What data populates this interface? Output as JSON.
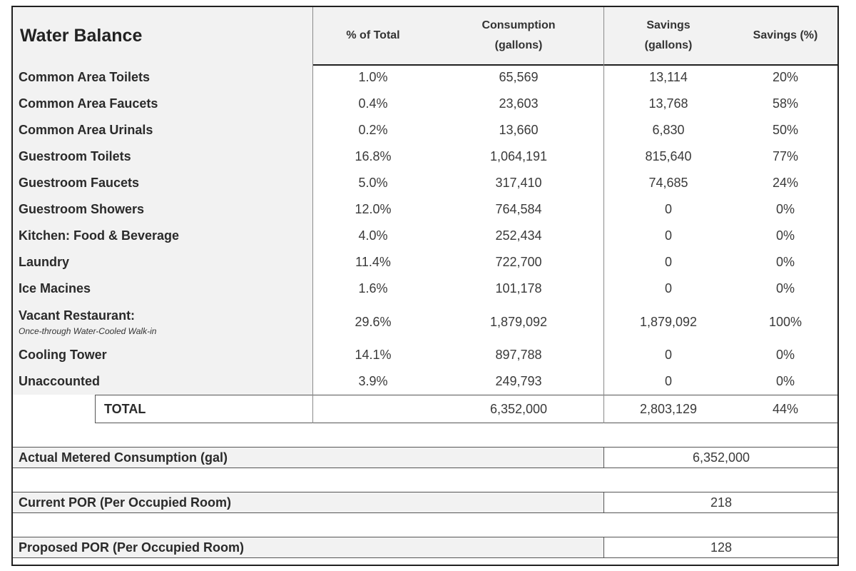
{
  "table": {
    "title": "Water Balance",
    "headers": {
      "pct": "% of Total",
      "consumption_1": "Consumption",
      "consumption_2": "(gallons)",
      "savings_1": "Savings",
      "savings_2": "(gallons)",
      "savings_pct": "Savings (%)"
    },
    "rows": [
      {
        "label": "Common Area Toilets",
        "pct": "1.0%",
        "consumption": "65,569",
        "savings": "13,114",
        "savings_pct": "20%"
      },
      {
        "label": "Common Area Faucets",
        "pct": "0.4%",
        "consumption": "23,603",
        "savings": "13,768",
        "savings_pct": "58%"
      },
      {
        "label": "Common Area Urinals",
        "pct": "0.2%",
        "consumption": "13,660",
        "savings": "6,830",
        "savings_pct": "50%"
      },
      {
        "label": "Guestroom Toilets",
        "pct": "16.8%",
        "consumption": "1,064,191",
        "savings": "815,640",
        "savings_pct": "77%"
      },
      {
        "label": "Guestroom Faucets",
        "pct": "5.0%",
        "consumption": "317,410",
        "savings": "74,685",
        "savings_pct": "24%"
      },
      {
        "label": "Guestroom Showers",
        "pct": "12.0%",
        "consumption": "764,584",
        "savings": "0",
        "savings_pct": "0%"
      },
      {
        "label": "Kitchen: Food & Beverage",
        "pct": "4.0%",
        "consumption": "252,434",
        "savings": "0",
        "savings_pct": "0%"
      },
      {
        "label": "Laundry",
        "pct": "11.4%",
        "consumption": "722,700",
        "savings": "0",
        "savings_pct": "0%"
      },
      {
        "label": "Ice Macines",
        "pct": "1.6%",
        "consumption": "101,178",
        "savings": "0",
        "savings_pct": "0%"
      },
      {
        "label": "Vacant Restaurant:",
        "sublabel": "Once-through Water-Cooled Walk-in",
        "pct": "29.6%",
        "consumption": "1,879,092",
        "savings": "1,879,092",
        "savings_pct": "100%"
      },
      {
        "label": "Cooling Tower",
        "pct": "14.1%",
        "consumption": "897,788",
        "savings": "0",
        "savings_pct": "0%"
      },
      {
        "label": "Unaccounted",
        "pct": "3.9%",
        "consumption": "249,793",
        "savings": "0",
        "savings_pct": "0%"
      }
    ],
    "total": {
      "label": "TOTAL",
      "consumption": "6,352,000",
      "savings": "2,803,129",
      "savings_pct": "44%"
    }
  },
  "summary": {
    "metered": {
      "label": "Actual Metered Consumption (gal)",
      "value": "6,352,000"
    },
    "current_por": {
      "label": "Current POR (Per Occupied Room)",
      "value": "218"
    },
    "proposed_por": {
      "label": "Proposed POR (Per Occupied Room)",
      "value": "128"
    }
  }
}
